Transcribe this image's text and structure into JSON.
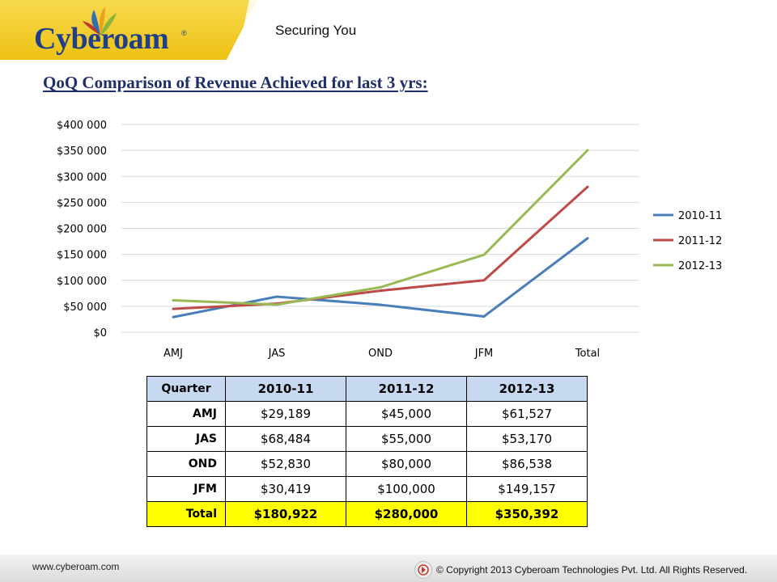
{
  "header": {
    "brand": "Cyberoam",
    "brand_mark": "®",
    "tagline": "Securing You"
  },
  "slide": {
    "title": "QoQ Comparison of Revenue Achieved for last 3 yrs:"
  },
  "chart_data": {
    "type": "line",
    "categories": [
      "AMJ",
      "JAS",
      "OND",
      "JFM",
      "Total"
    ],
    "series": [
      {
        "name": "2010-11",
        "color": "#4a7ebb",
        "values": [
          29189,
          68484,
          52830,
          30419,
          180922
        ]
      },
      {
        "name": "2011-12",
        "color": "#be4b48",
        "values": [
          45000,
          55000,
          80000,
          100000,
          280000
        ]
      },
      {
        "name": "2012-13",
        "color": "#98b954",
        "values": [
          61527,
          53170,
          86538,
          149157,
          350392
        ]
      }
    ],
    "y_ticks": [
      "$0",
      "$50 000",
      "$100 000",
      "$150 000",
      "$200 000",
      "$250 000",
      "$300 000",
      "$350 000",
      "$400 000"
    ],
    "ylim": [
      0,
      400000
    ],
    "ystep": 50000,
    "grid": true,
    "legend_position": "right",
    "title": "",
    "xlabel": "",
    "ylabel": ""
  },
  "table": {
    "headers": [
      "Quarter",
      "2010-11",
      "2011-12",
      "2012-13"
    ],
    "rows": [
      [
        "AMJ",
        "$29,189",
        "$45,000",
        "$61,527"
      ],
      [
        "JAS",
        "$68,484",
        "$55,000",
        "$53,170"
      ],
      [
        "OND",
        "$52,830",
        "$80,000",
        "$86,538"
      ],
      [
        "JFM",
        "$30,419",
        "$100,000",
        "$149,157"
      ]
    ],
    "total": [
      "Total",
      "$180,922",
      "$280,000",
      "$350,392"
    ],
    "total_color": "#ffff00",
    "header_color": "#c6d9f1"
  },
  "footer": {
    "url": "www.cyberoam.com",
    "copyright": "© Copyright 2013 Cyberoam Technologies Pvt. Ltd. All Rights Reserved."
  }
}
